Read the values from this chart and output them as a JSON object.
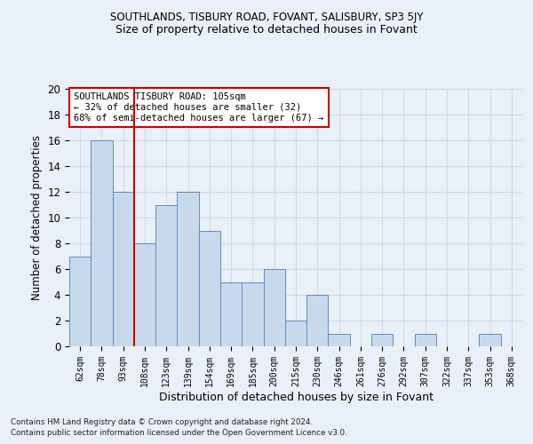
{
  "title1": "SOUTHLANDS, TISBURY ROAD, FOVANT, SALISBURY, SP3 5JY",
  "title2": "Size of property relative to detached houses in Fovant",
  "xlabel": "Distribution of detached houses by size in Fovant",
  "ylabel": "Number of detached properties",
  "footer1": "Contains HM Land Registry data © Crown copyright and database right 2024.",
  "footer2": "Contains public sector information licensed under the Open Government Licence v3.0.",
  "categories": [
    "62sqm",
    "78sqm",
    "93sqm",
    "108sqm",
    "123sqm",
    "139sqm",
    "154sqm",
    "169sqm",
    "185sqm",
    "200sqm",
    "215sqm",
    "230sqm",
    "246sqm",
    "261sqm",
    "276sqm",
    "292sqm",
    "307sqm",
    "322sqm",
    "337sqm",
    "353sqm",
    "368sqm"
  ],
  "values": [
    7,
    16,
    12,
    8,
    11,
    12,
    9,
    5,
    5,
    6,
    2,
    4,
    1,
    0,
    1,
    0,
    1,
    0,
    0,
    1,
    0
  ],
  "bar_color": "#c9d9ec",
  "bar_edge_color": "#5a8fc4",
  "grid_color": "#d0d8e8",
  "vline_x": 2.5,
  "vline_color": "#cc0000",
  "annotation_text": "SOUTHLANDS TISBURY ROAD: 105sqm\n← 32% of detached houses are smaller (32)\n68% of semi-detached houses are larger (67) →",
  "annotation_box_color": "#ffffff",
  "annotation_box_edge": "#cc0000",
  "ylim": [
    0,
    20
  ],
  "yticks": [
    0,
    2,
    4,
    6,
    8,
    10,
    12,
    14,
    16,
    18,
    20
  ],
  "background_color": "#eaf0f8"
}
